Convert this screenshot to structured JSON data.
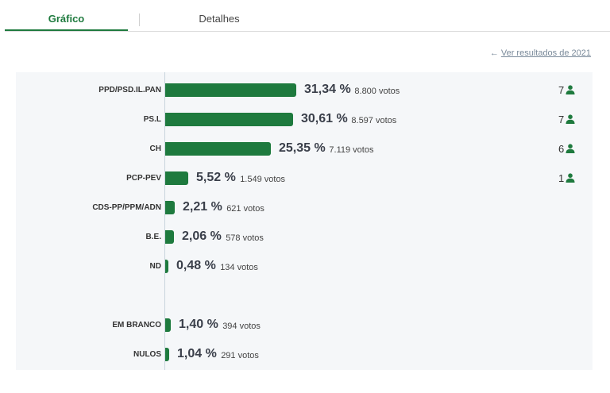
{
  "tabs": [
    {
      "label": "Gráfico",
      "active": true
    },
    {
      "label": "Detalhes",
      "active": false
    }
  ],
  "prev_results_link": "Ver resultados de 2021",
  "colors": {
    "accent": "#1e7a3e",
    "panel": "#f5f7f9"
  },
  "chart_data": {
    "type": "bar",
    "orientation": "horizontal",
    "unit": "%",
    "xlim": [
      0,
      40
    ],
    "rows": [
      {
        "party": "PPD/PSD.IL.PAN",
        "value": 31.34,
        "pct_label": "31,34 %",
        "votes": "8.800 votos",
        "seats": "7"
      },
      {
        "party": "PS.L",
        "value": 30.61,
        "pct_label": "30,61 %",
        "votes": "8.597 votos",
        "seats": "7"
      },
      {
        "party": "CH",
        "value": 25.35,
        "pct_label": "25,35 %",
        "votes": "7.119 votos",
        "seats": "6"
      },
      {
        "party": "PCP-PEV",
        "value": 5.52,
        "pct_label": "5,52 %",
        "votes": "1.549 votos",
        "seats": "1"
      },
      {
        "party": "CDS-PP/PPM/ADN",
        "value": 2.21,
        "pct_label": "2,21 %",
        "votes": "621 votos",
        "seats": ""
      },
      {
        "party": "B.E.",
        "value": 2.06,
        "pct_label": "2,06 %",
        "votes": "578 votos",
        "seats": ""
      },
      {
        "party": "ND",
        "value": 0.48,
        "pct_label": "0,48 %",
        "votes": "134 votos",
        "seats": ""
      },
      {
        "party": "EM BRANCO",
        "value": 1.4,
        "pct_label": "1,40 %",
        "votes": "394 votos",
        "seats": ""
      },
      {
        "party": "NULOS",
        "value": 1.04,
        "pct_label": "1,04 %",
        "votes": "291 votos",
        "seats": ""
      }
    ]
  }
}
